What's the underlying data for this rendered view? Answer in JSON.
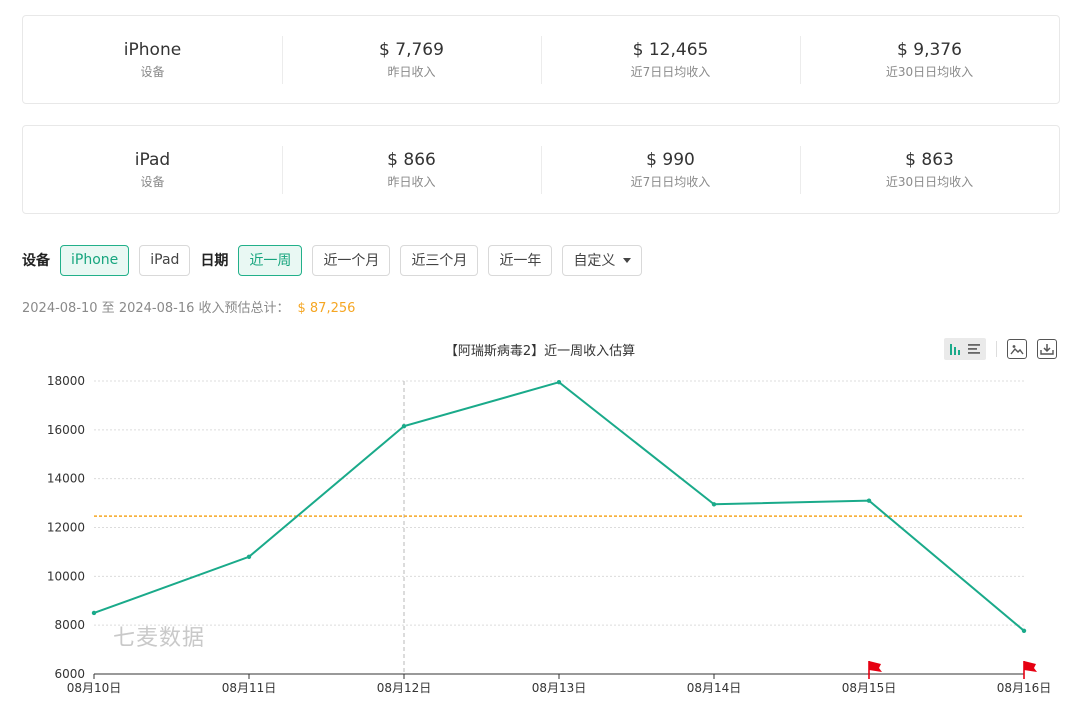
{
  "devices": [
    {
      "name": "iPhone",
      "name_label": "设备",
      "yesterday": "$ 7,769",
      "yesterday_label": "昨日收入",
      "avg7": "$ 12,465",
      "avg7_label": "近7日日均收入",
      "avg30": "$ 9,376",
      "avg30_label": "近30日日均收入"
    },
    {
      "name": "iPad",
      "name_label": "设备",
      "yesterday": "$ 866",
      "yesterday_label": "昨日收入",
      "avg7": "$ 990",
      "avg7_label": "近7日日均收入",
      "avg30": "$ 863",
      "avg30_label": "近30日日均收入"
    }
  ],
  "filters": {
    "device_title": "设备",
    "device_options": [
      "iPhone",
      "iPad"
    ],
    "device_selected": "iPhone",
    "date_title": "日期",
    "date_options": [
      "近一周",
      "近一个月",
      "近三个月",
      "近一年"
    ],
    "date_selected": "近一周",
    "custom_label": "自定义"
  },
  "summary": {
    "range_text": "2024-08-10 至 2024-08-16 收入预估总计：",
    "total": "$ 87,256"
  },
  "watermark": "七麦数据",
  "toolbar": {
    "icons": [
      "bar-chart-icon",
      "list-icon",
      "image-icon",
      "download-icon"
    ]
  },
  "chart_data": {
    "type": "line",
    "title": "【阿瑞斯病毒2】近一周收入估算",
    "categories": [
      "08月10日",
      "08月11日",
      "08月12日",
      "08月13日",
      "08月14日",
      "08月15日",
      "08月16日"
    ],
    "series": [
      {
        "values": [
          8500,
          10800,
          16150,
          17950,
          12950,
          13100,
          7769
        ],
        "color": "#1aaa8a"
      }
    ],
    "average_line": {
      "value": 12465,
      "color": "#f5a623"
    },
    "ylim": [
      6000,
      18000
    ],
    "yticks": [
      6000,
      8000,
      10000,
      12000,
      14000,
      16000,
      18000
    ],
    "grid": true,
    "crosshair_category": "08月12日",
    "flag_markers": [
      "08月15日",
      "08月16日"
    ],
    "flag_color": "#e60012"
  }
}
